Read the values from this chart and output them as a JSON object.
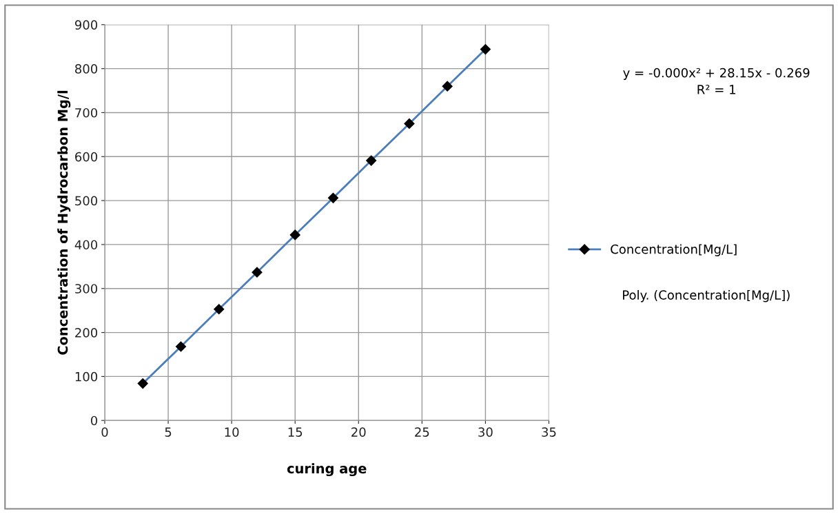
{
  "chart_data": {
    "type": "line",
    "xlabel": "curing age",
    "ylabel": "Concentration of Hydrocarbon Mg/l",
    "x": [
      3,
      6,
      9,
      12,
      15,
      18,
      21,
      24,
      27,
      30
    ],
    "series": [
      {
        "name": "Concentration[Mg/L]",
        "color": "#4a7ebb",
        "values": [
          84,
          168,
          253,
          337,
          422,
          506,
          591,
          675,
          760,
          844
        ]
      }
    ],
    "xlim": [
      0,
      35
    ],
    "xticks": [
      0,
      5,
      10,
      15,
      20,
      25,
      30,
      35
    ],
    "ylim": [
      0,
      900
    ],
    "yticks": [
      0,
      100,
      200,
      300,
      400,
      500,
      600,
      700,
      800,
      900
    ],
    "grid": true,
    "legend": "right",
    "marker": "diamond",
    "line_style": "solid",
    "annotations": [
      "y = -0.000x² + 28.15x - 0.269\nR² = 1",
      "Poly. (Concentration[Mg/L])"
    ]
  }
}
